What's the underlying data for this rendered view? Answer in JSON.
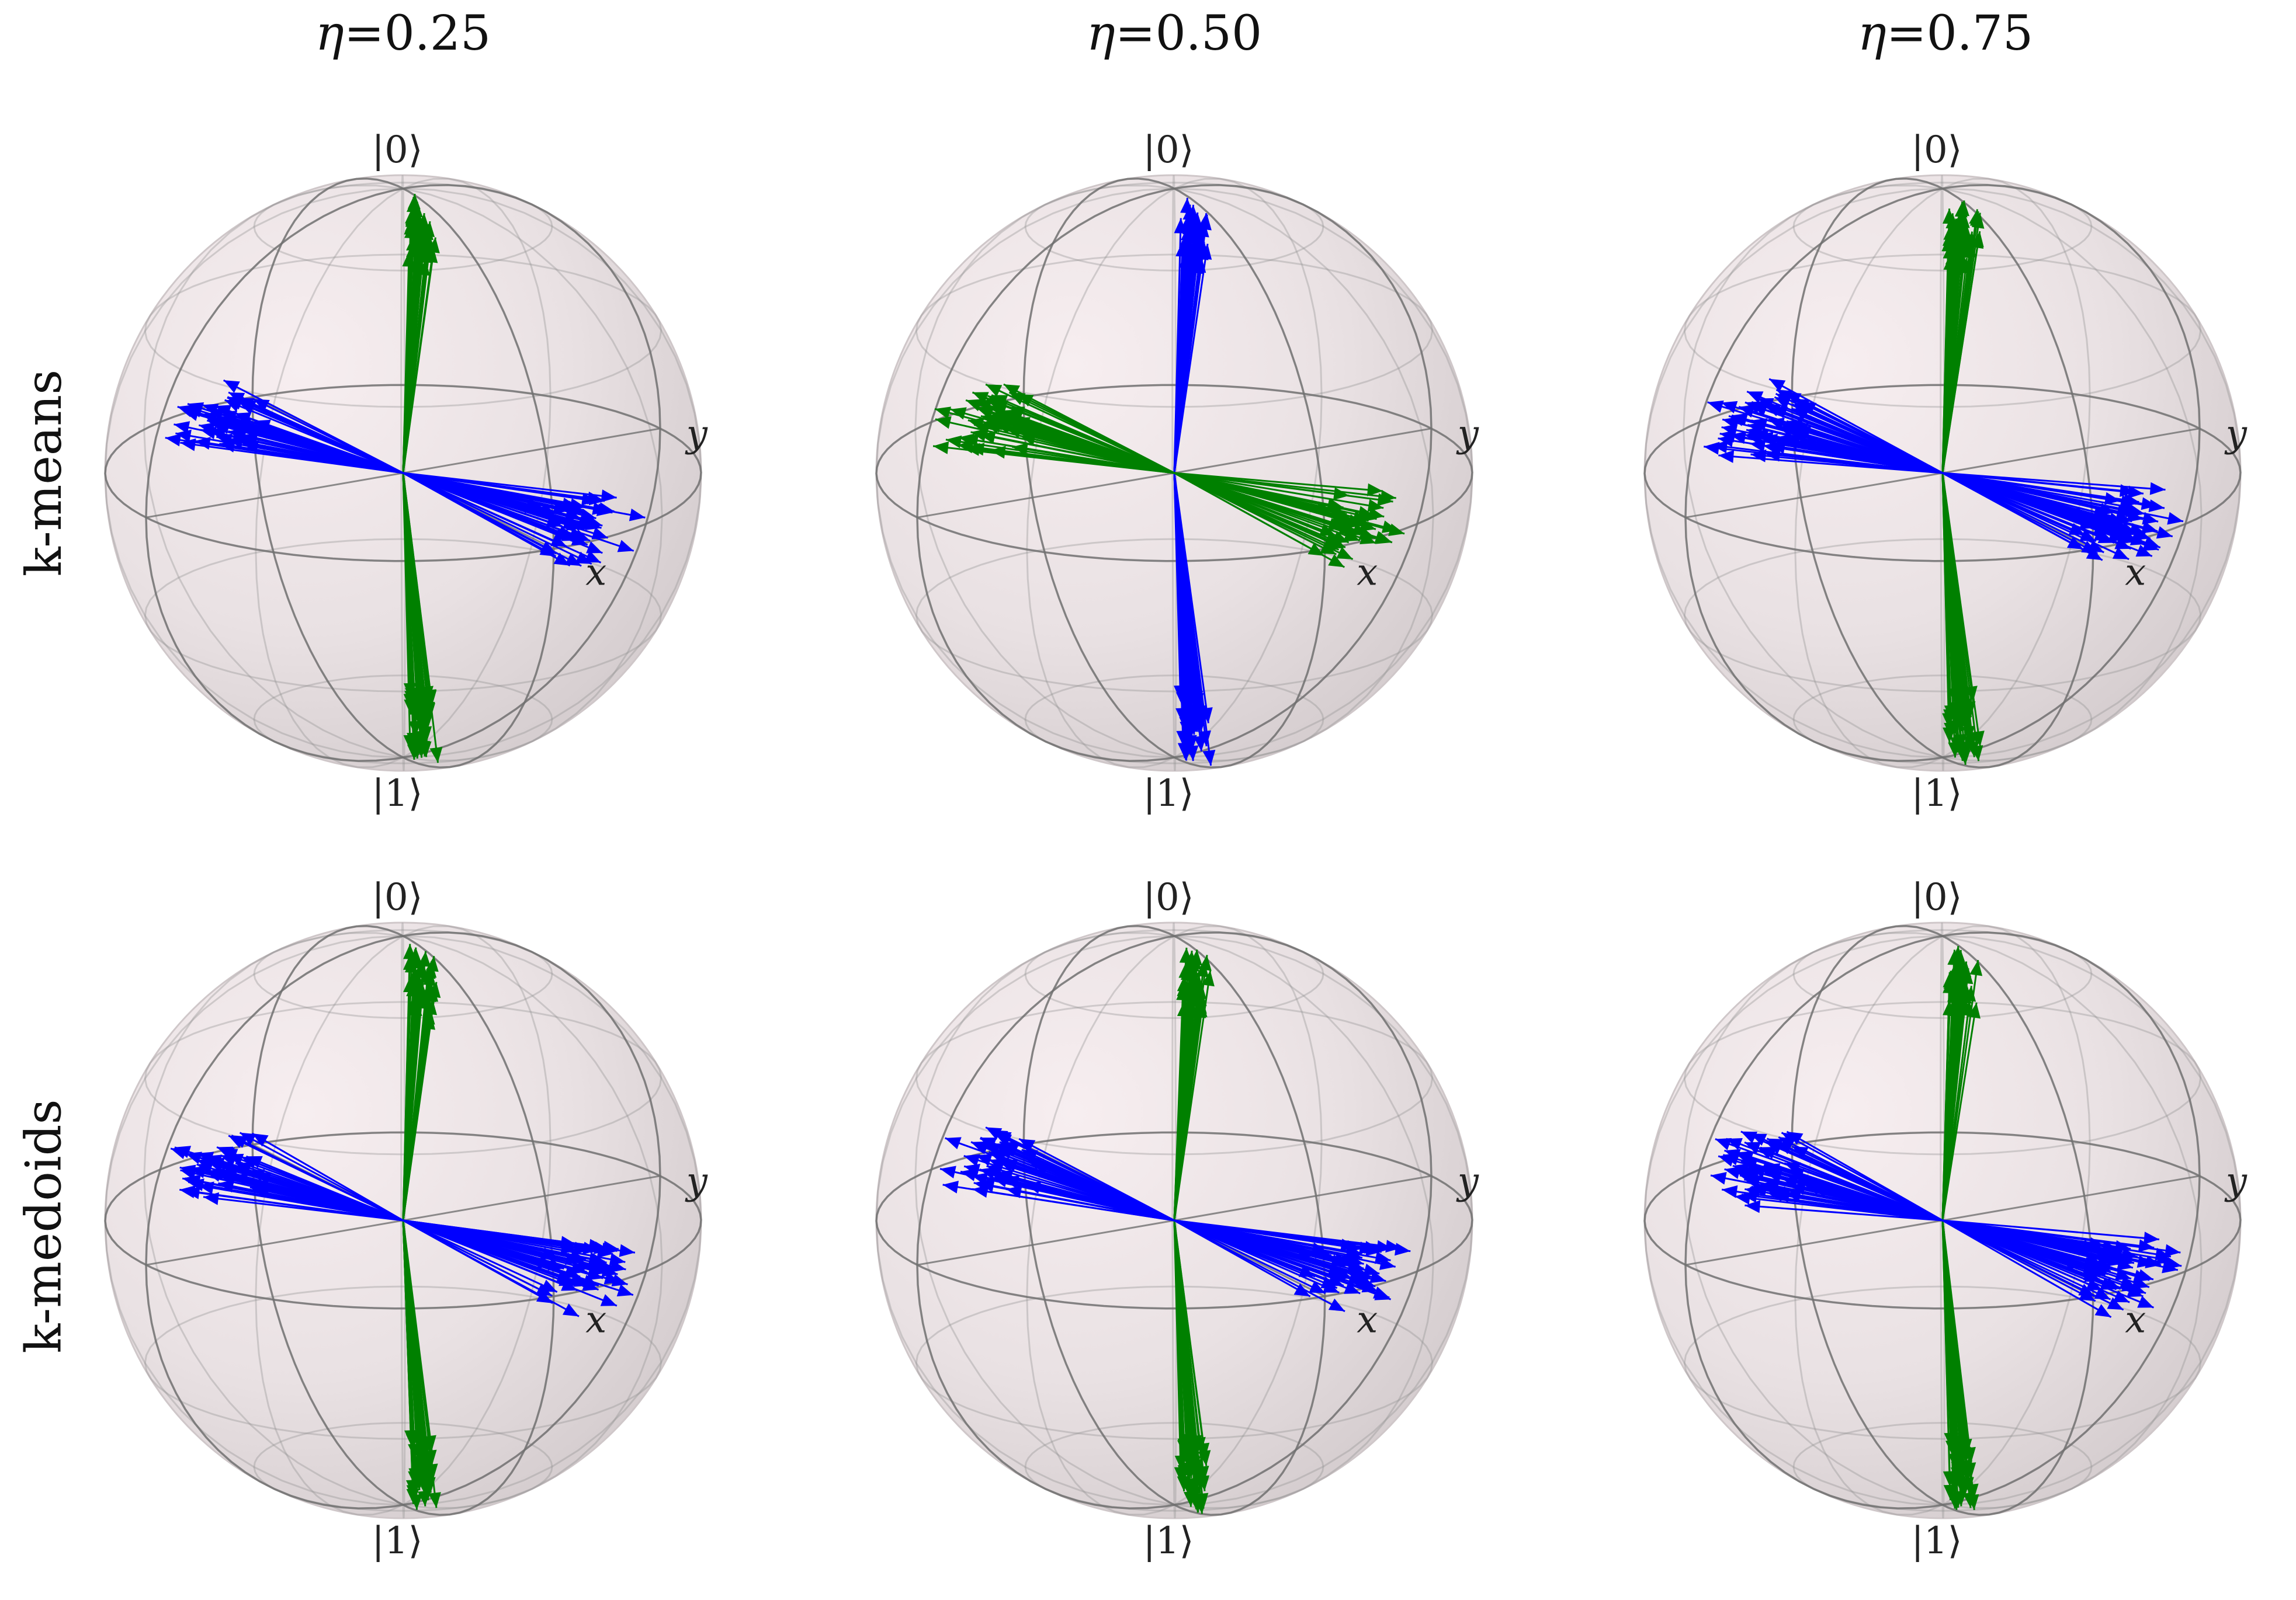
{
  "columns": [
    {
      "symbol": "η",
      "value": "=0.25"
    },
    {
      "symbol": "η",
      "value": "=0.50"
    },
    {
      "symbol": "η",
      "value": "=0.75"
    }
  ],
  "rows": [
    "k-means",
    "k-medoids"
  ],
  "axis_labels": {
    "x": "x",
    "y": "y",
    "top": "|0⟩",
    "bottom": "|1⟩"
  },
  "colors": {
    "cluster_a": "#0000ff",
    "cluster_b": "#008000",
    "sphere_fill": "#e6dfe1",
    "wire": "#8f8f8f",
    "equator": "#707070"
  },
  "clusters": [
    [
      [
        {
          "color": "cluster_b",
          "theta": 8,
          "phi": 0,
          "n": 40,
          "spread": 5
        },
        {
          "color": "cluster_b",
          "theta": 172,
          "phi": 0,
          "n": 40,
          "spread": 5
        },
        {
          "color": "cluster_a",
          "theta": 90,
          "phi": 15,
          "n": 45,
          "spread": 6
        },
        {
          "color": "cluster_a",
          "theta": 90,
          "phi": 195,
          "n": 45,
          "spread": 6
        }
      ],
      [
        {
          "color": "cluster_a",
          "theta": 8,
          "phi": 0,
          "n": 40,
          "spread": 5
        },
        {
          "color": "cluster_a",
          "theta": 172,
          "phi": 0,
          "n": 40,
          "spread": 5
        },
        {
          "color": "cluster_b",
          "theta": 90,
          "phi": 15,
          "n": 45,
          "spread": 6
        },
        {
          "color": "cluster_b",
          "theta": 90,
          "phi": 195,
          "n": 45,
          "spread": 6
        }
      ],
      [
        {
          "color": "cluster_b",
          "theta": 8,
          "phi": 0,
          "n": 40,
          "spread": 5
        },
        {
          "color": "cluster_b",
          "theta": 172,
          "phi": 0,
          "n": 40,
          "spread": 5
        },
        {
          "color": "cluster_a",
          "theta": 90,
          "phi": 15,
          "n": 55,
          "spread": 7
        },
        {
          "color": "cluster_a",
          "theta": 90,
          "phi": 195,
          "n": 55,
          "spread": 7
        }
      ]
    ],
    [
      [
        {
          "color": "cluster_b",
          "theta": 8,
          "phi": 0,
          "n": 40,
          "spread": 5
        },
        {
          "color": "cluster_b",
          "theta": 172,
          "phi": 0,
          "n": 40,
          "spread": 5
        },
        {
          "color": "cluster_a",
          "theta": 90,
          "phi": 15,
          "n": 45,
          "spread": 6
        },
        {
          "color": "cluster_a",
          "theta": 90,
          "phi": 195,
          "n": 45,
          "spread": 6
        }
      ],
      [
        {
          "color": "cluster_b",
          "theta": 8,
          "phi": 0,
          "n": 40,
          "spread": 5
        },
        {
          "color": "cluster_b",
          "theta": 172,
          "phi": 0,
          "n": 40,
          "spread": 5
        },
        {
          "color": "cluster_a",
          "theta": 90,
          "phi": 15,
          "n": 45,
          "spread": 6
        },
        {
          "color": "cluster_a",
          "theta": 90,
          "phi": 195,
          "n": 45,
          "spread": 6
        }
      ],
      [
        {
          "color": "cluster_b",
          "theta": 8,
          "phi": 0,
          "n": 40,
          "spread": 5
        },
        {
          "color": "cluster_b",
          "theta": 172,
          "phi": 0,
          "n": 40,
          "spread": 5
        },
        {
          "color": "cluster_a",
          "theta": 90,
          "phi": 15,
          "n": 55,
          "spread": 7
        },
        {
          "color": "cluster_a",
          "theta": 90,
          "phi": 195,
          "n": 55,
          "spread": 7
        }
      ]
    ]
  ]
}
